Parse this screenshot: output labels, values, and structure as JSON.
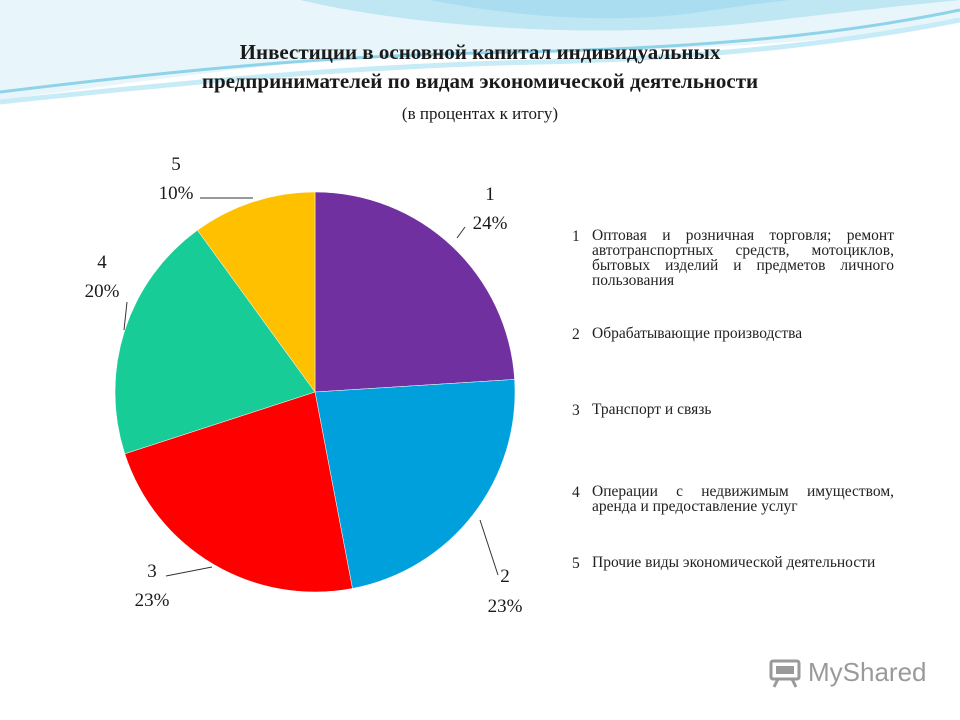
{
  "title": {
    "line1": "Инвестиции в основной капитал индивидуальных",
    "line2": "предпринимателей по видам экономической деятельности",
    "subtitle": "(в процентах к итогу)"
  },
  "chart_data": {
    "type": "pie",
    "categories": [
      "1",
      "2",
      "3",
      "4",
      "5"
    ],
    "values": [
      24,
      23,
      23,
      20,
      10
    ],
    "data_labels": [
      "24%",
      "23%",
      "23%",
      "20%",
      "10%"
    ],
    "colors": [
      "#7030a0",
      "#00a0dc",
      "#ff0000",
      "#17cc96",
      "#ffc000"
    ],
    "legend_placement": "right"
  },
  "legend": [
    {
      "num": "1",
      "text": "Оптовая и розничная торговля; ремонт автотранспортных средств, мотоциклов, бытовых изделий и предметов личного пользования"
    },
    {
      "num": "2",
      "text": "Обрабатывающие производства"
    },
    {
      "num": "3",
      "text": "Транспорт и связь"
    },
    {
      "num": "4",
      "text": "Операции с недвижимым имуществом, аренда и предоставление услуг"
    },
    {
      "num": "5",
      "text": "Прочие виды экономической деятельности"
    }
  ],
  "logo": {
    "text": "MyShared"
  }
}
